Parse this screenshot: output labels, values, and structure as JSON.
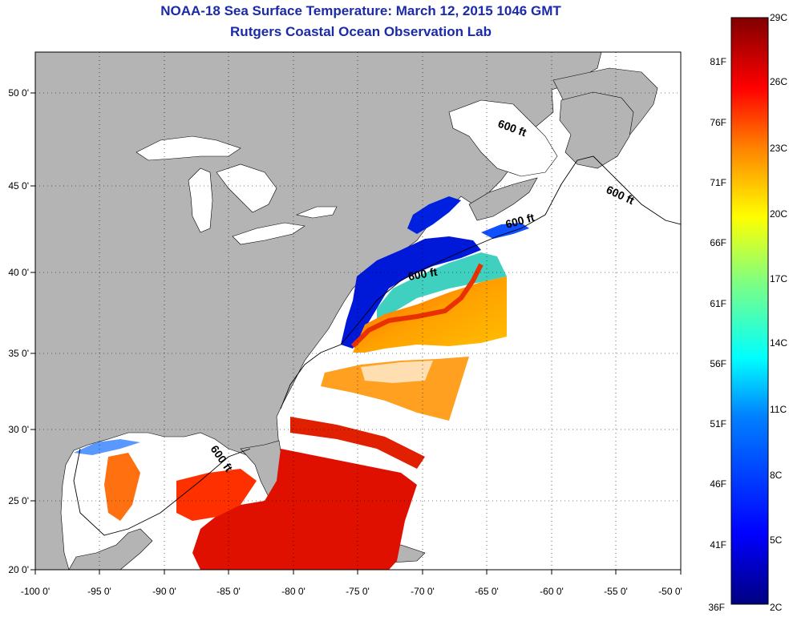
{
  "header": {
    "title": "NOAA-18 Sea Surface Temperature:  March 12, 2015 1046 GMT",
    "subtitle": "Rutgers Coastal Ocean Observation Lab"
  },
  "axes": {
    "x_ticks": [
      "-100 0'",
      "-95 0'",
      "-90 0'",
      "-85 0'",
      "-80 0'",
      "-75 0'",
      "-70 0'",
      "-65 0'",
      "-60 0'",
      "-55 0'",
      "-50 0'"
    ],
    "y_ticks": [
      "50 0'",
      "45 0'",
      "40 0'",
      "35 0'",
      "30 0'",
      "25 0'",
      "20 0'"
    ]
  },
  "colorbar": {
    "celsius_labels": [
      "29C",
      "26C",
      "23C",
      "20C",
      "17C",
      "14C",
      "11C",
      "8C",
      "5C",
      "2C"
    ],
    "fahrenheit_labels": [
      "81F",
      "76F",
      "71F",
      "66F",
      "61F",
      "56F",
      "51F",
      "46F",
      "41F",
      "36F"
    ],
    "colors": [
      "#800000",
      "#ff0000",
      "#ff8000",
      "#ffff00",
      "#80ff80",
      "#00ffff",
      "#0080ff",
      "#0000ff",
      "#000080"
    ]
  },
  "contour_labels": [
    "600 ft",
    "600 ft",
    "600 ft",
    "600 ft",
    "600 ft"
  ],
  "colors": {
    "land": "#b4b4b4",
    "ocean_no_data": "#ffffff",
    "title": "#1a2aa8"
  }
}
